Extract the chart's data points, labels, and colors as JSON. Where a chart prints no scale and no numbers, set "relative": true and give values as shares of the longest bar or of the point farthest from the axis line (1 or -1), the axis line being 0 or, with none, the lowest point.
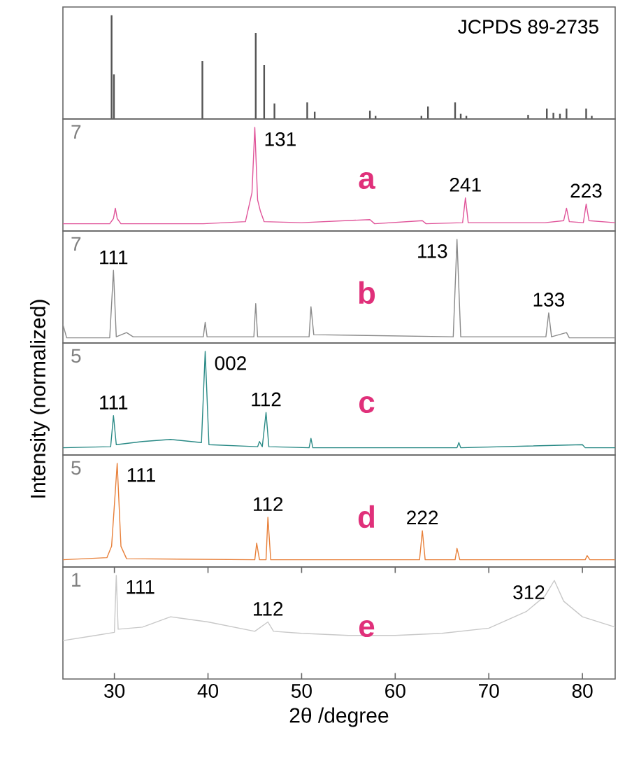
{
  "chart_data": [
    {
      "type": "bar",
      "relative": true,
      "title": "JCPDS 89-2735",
      "xlim": [
        24.5,
        83.5
      ],
      "tick_labels": false,
      "color": "#555555",
      "x": [
        29.7,
        29.95,
        39.4,
        45.1,
        46.0,
        47.1,
        50.6,
        51.4,
        57.3,
        57.9,
        62.8,
        63.5,
        66.4,
        67.0,
        67.6,
        74.2,
        76.2,
        76.9,
        77.6,
        78.3,
        80.4,
        81.0
      ],
      "values": [
        1.0,
        0.43,
        0.56,
        0.83,
        0.52,
        0.15,
        0.16,
        0.07,
        0.08,
        0.03,
        0.03,
        0.12,
        0.16,
        0.05,
        0.03,
        0.04,
        0.1,
        0.06,
        0.05,
        0.1,
        0.1,
        0.03
      ]
    },
    {
      "type": "line",
      "relative": true,
      "xlim": [
        24.5,
        83.5
      ],
      "tick_labels": false,
      "annotations": [
        "7",
        {
          "text": "131",
          "x": 45.0,
          "y": 1.0
        },
        {
          "text": "241",
          "x": 67.5,
          "y": 0.32
        },
        {
          "text": "223",
          "x": 80.4,
          "y": 0.26
        }
      ],
      "x": [
        24.5,
        29.5,
        29.9,
        30.1,
        30.3,
        30.7,
        39.5,
        44.0,
        44.7,
        45.0,
        45.3,
        45.6,
        46.0,
        50.0,
        57.3,
        57.8,
        62.9,
        63.3,
        67.2,
        67.5,
        67.8,
        76.0,
        78.0,
        78.3,
        78.6,
        80.1,
        80.4,
        80.7,
        83.5
      ],
      "series": [
        {
          "name": "a",
          "color": "#e0559a",
          "values": [
            0.07,
            0.07,
            0.12,
            0.22,
            0.12,
            0.07,
            0.07,
            0.09,
            0.37,
            1.0,
            0.3,
            0.19,
            0.09,
            0.08,
            0.11,
            0.07,
            0.1,
            0.07,
            0.08,
            0.32,
            0.08,
            0.08,
            0.1,
            0.22,
            0.09,
            0.08,
            0.26,
            0.1,
            0.08
          ]
        }
      ]
    },
    {
      "type": "line",
      "relative": true,
      "xlim": [
        24.5,
        83.5
      ],
      "tick_labels": false,
      "annotations": [
        "7",
        {
          "text": "111",
          "x": 29.9,
          "y": 0.7
        },
        {
          "text": "113",
          "x": 66.6,
          "y": 1.0
        },
        {
          "text": "133",
          "x": 76.4,
          "y": 0.29
        }
      ],
      "x": [
        24.5,
        24.9,
        29.5,
        29.9,
        30.2,
        31.3,
        32.0,
        39.5,
        39.7,
        39.9,
        44.9,
        45.1,
        45.3,
        50.8,
        51.0,
        51.3,
        66.2,
        66.6,
        67.0,
        76.1,
        76.4,
        76.7,
        78.3,
        78.6,
        83.5
      ],
      "series": [
        {
          "name": "b",
          "color": "#8a8a8a",
          "values": [
            0.18,
            0.05,
            0.05,
            0.7,
            0.06,
            0.1,
            0.06,
            0.06,
            0.2,
            0.06,
            0.06,
            0.38,
            0.06,
            0.06,
            0.35,
            0.08,
            0.06,
            1.0,
            0.06,
            0.06,
            0.29,
            0.06,
            0.1,
            0.05,
            0.05
          ]
        }
      ]
    },
    {
      "type": "line",
      "relative": true,
      "xlim": [
        24.5,
        83.5
      ],
      "tick_labels": false,
      "ylabel": "Intensity (normalized)",
      "annotations": [
        "5",
        {
          "text": "111",
          "x": 29.9,
          "y": 0.38
        },
        {
          "text": "002",
          "x": 39.7,
          "y": 1.0
        },
        {
          "text": "112",
          "x": 46.2,
          "y": 0.41
        }
      ],
      "x": [
        24.5,
        29.6,
        29.9,
        30.2,
        33.0,
        36.0,
        39.3,
        39.7,
        40.1,
        45.3,
        45.5,
        45.8,
        46.2,
        46.5,
        50.8,
        51.0,
        51.2,
        66.6,
        66.8,
        67.0,
        80.0,
        80.3,
        83.5
      ],
      "series": [
        {
          "name": "c",
          "color": "#2a8a86",
          "values": [
            0.07,
            0.08,
            0.38,
            0.1,
            0.13,
            0.15,
            0.12,
            1.0,
            0.1,
            0.08,
            0.13,
            0.08,
            0.41,
            0.08,
            0.07,
            0.16,
            0.07,
            0.07,
            0.12,
            0.07,
            0.1,
            0.07,
            0.07
          ]
        }
      ]
    },
    {
      "type": "line",
      "relative": true,
      "xlim": [
        24.5,
        83.5
      ],
      "tick_labels": false,
      "annotations": [
        "5",
        {
          "text": "111",
          "x": 30.3,
          "y": 1.0
        },
        {
          "text": "112",
          "x": 46.4,
          "y": 0.48
        },
        {
          "text": "222",
          "x": 62.9,
          "y": 0.35
        }
      ],
      "x": [
        24.5,
        29.2,
        29.7,
        30.3,
        30.7,
        31.3,
        45.0,
        45.2,
        45.5,
        46.2,
        46.4,
        46.7,
        62.6,
        62.9,
        63.2,
        66.4,
        66.6,
        66.9,
        80.3,
        80.5,
        80.8,
        83.5
      ],
      "series": [
        {
          "name": "d",
          "color": "#e8803a",
          "values": [
            0.07,
            0.09,
            0.2,
            1.0,
            0.2,
            0.08,
            0.07,
            0.23,
            0.07,
            0.07,
            0.48,
            0.07,
            0.07,
            0.35,
            0.07,
            0.07,
            0.18,
            0.07,
            0.07,
            0.11,
            0.07,
            0.07
          ]
        }
      ]
    },
    {
      "type": "line",
      "relative": true,
      "xlim": [
        24.5,
        83.5
      ],
      "xticks": [
        30,
        40,
        50,
        60,
        70,
        80
      ],
      "tick_labels": "x",
      "xlabel": "2θ /degree",
      "annotations": [
        "1",
        {
          "text": "111",
          "x": 30.2,
          "y": 1.0
        },
        {
          "text": "112",
          "x": 46.4,
          "y": 0.55
        },
        {
          "text": "312",
          "x": 77.0,
          "y": 0.95
        }
      ],
      "x": [
        24.5,
        28.0,
        30.0,
        30.2,
        30.4,
        33.0,
        36.0,
        40.0,
        45.0,
        46.4,
        47.0,
        50.0,
        55.0,
        60.0,
        65.0,
        70.0,
        74.0,
        76.0,
        77.0,
        78.0,
        80.0,
        83.5
      ],
      "series": [
        {
          "name": "e",
          "color": "#c8c8c8",
          "values": [
            0.37,
            0.42,
            0.45,
            1.0,
            0.48,
            0.5,
            0.6,
            0.55,
            0.46,
            0.55,
            0.46,
            0.44,
            0.42,
            0.42,
            0.44,
            0.49,
            0.65,
            0.8,
            0.95,
            0.75,
            0.6,
            0.5
          ]
        }
      ]
    }
  ]
}
